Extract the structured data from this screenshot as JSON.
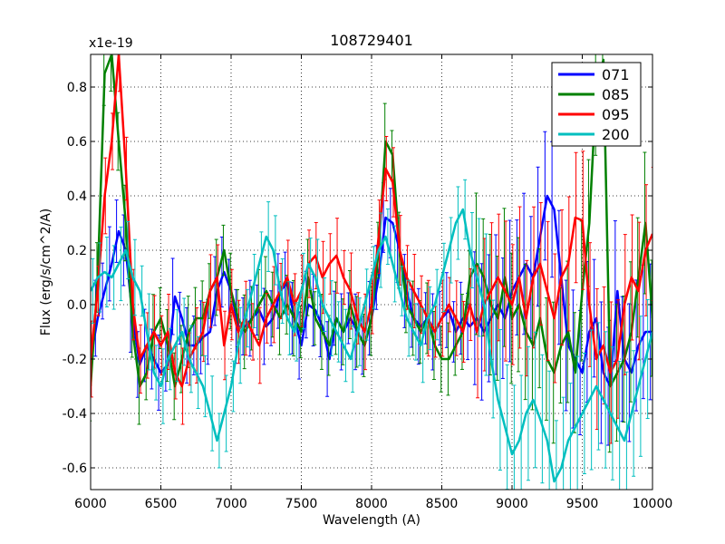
{
  "chart_data": {
    "type": "line",
    "title": "108729401",
    "xlabel": "Wavelength (A)",
    "ylabel": "Flux (erg/s/cm^2/A)",
    "y_multiplier": "x1e-19",
    "xlim": [
      6000,
      10000
    ],
    "ylim": [
      -0.68,
      0.92
    ],
    "x_ticks": [
      6000,
      6500,
      7000,
      7500,
      8000,
      8500,
      9000,
      9500,
      10000
    ],
    "y_ticks": [
      -0.6,
      -0.4,
      -0.2,
      0.0,
      0.2,
      0.4,
      0.6,
      0.8
    ],
    "y_tick_labels": [
      "-0.6",
      "-0.4",
      "-0.2",
      "0.0",
      "0.2",
      "0.4",
      "0.6",
      "0.8"
    ],
    "grid": true,
    "legend_position": "top-right",
    "x": [
      6000,
      6050,
      6100,
      6150,
      6200,
      6250,
      6300,
      6350,
      6400,
      6450,
      6500,
      6550,
      6600,
      6650,
      6700,
      6750,
      6800,
      6850,
      6900,
      6950,
      7000,
      7050,
      7100,
      7150,
      7200,
      7250,
      7300,
      7350,
      7400,
      7450,
      7500,
      7550,
      7600,
      7650,
      7700,
      7750,
      7800,
      7850,
      7900,
      7950,
      8000,
      8050,
      8100,
      8150,
      8200,
      8250,
      8300,
      8350,
      8400,
      8450,
      8500,
      8550,
      8600,
      8650,
      8700,
      8750,
      8800,
      8850,
      8900,
      8950,
      9000,
      9050,
      9100,
      9150,
      9200,
      9250,
      9300,
      9350,
      9400,
      9450,
      9500,
      9550,
      9600,
      9650,
      9700,
      9750,
      9800,
      9850,
      9900,
      9950,
      10000
    ],
    "series": [
      {
        "name": "071",
        "color": "#0000ff",
        "values": [
          -0.2,
          -0.05,
          0.05,
          0.15,
          0.27,
          0.2,
          -0.05,
          -0.22,
          -0.15,
          -0.2,
          -0.25,
          -0.22,
          0.03,
          -0.05,
          -0.15,
          -0.15,
          -0.12,
          -0.1,
          0.05,
          0.12,
          0.05,
          -0.08,
          -0.08,
          -0.05,
          -0.02,
          -0.08,
          -0.05,
          0.05,
          0.08,
          -0.05,
          -0.15,
          0.0,
          -0.02,
          -0.08,
          -0.2,
          -0.05,
          -0.1,
          -0.05,
          -0.1,
          -0.15,
          -0.05,
          0.1,
          0.32,
          0.3,
          0.2,
          0.05,
          -0.05,
          -0.08,
          -0.05,
          -0.1,
          -0.05,
          -0.02,
          -0.1,
          -0.05,
          -0.08,
          -0.05,
          -0.1,
          -0.05,
          0.0,
          -0.05,
          0.05,
          0.1,
          0.15,
          0.1,
          0.25,
          0.4,
          0.35,
          0.1,
          -0.15,
          -0.2,
          -0.25,
          -0.1,
          -0.05,
          -0.25,
          -0.3,
          0.05,
          -0.2,
          -0.25,
          -0.15,
          -0.1,
          -0.1
        ]
      },
      {
        "name": "085",
        "color": "#008000",
        "values": [
          -0.3,
          0.1,
          0.85,
          0.92,
          0.6,
          0.3,
          -0.1,
          -0.3,
          -0.25,
          -0.1,
          -0.05,
          -0.15,
          -0.3,
          -0.2,
          -0.1,
          -0.05,
          -0.05,
          0.05,
          0.1,
          0.2,
          0.05,
          -0.05,
          -0.1,
          -0.05,
          0.0,
          0.05,
          0.0,
          -0.05,
          0.0,
          -0.05,
          -0.1,
          0.1,
          -0.05,
          -0.1,
          -0.15,
          -0.05,
          -0.1,
          0.0,
          -0.1,
          -0.15,
          -0.05,
          0.2,
          0.6,
          0.55,
          0.2,
          0.0,
          -0.05,
          -0.1,
          -0.05,
          -0.15,
          -0.2,
          -0.2,
          -0.15,
          -0.1,
          0.1,
          0.15,
          0.1,
          0.0,
          -0.05,
          0.1,
          -0.05,
          0.0,
          -0.1,
          -0.15,
          -0.05,
          -0.2,
          -0.25,
          -0.15,
          -0.1,
          -0.25,
          0.05,
          0.3,
          0.8,
          0.9,
          -0.3,
          -0.25,
          -0.2,
          -0.1,
          0.1,
          0.3,
          -0.05
        ]
      },
      {
        "name": "095",
        "color": "#ff0000",
        "values": [
          -0.2,
          0.05,
          0.4,
          0.6,
          0.92,
          0.5,
          0.0,
          -0.2,
          -0.15,
          -0.1,
          -0.15,
          -0.1,
          -0.25,
          -0.3,
          -0.2,
          -0.15,
          -0.1,
          0.05,
          0.1,
          -0.15,
          0.0,
          -0.1,
          -0.05,
          -0.1,
          -0.15,
          -0.05,
          0.0,
          0.05,
          0.1,
          0.0,
          0.05,
          0.15,
          0.18,
          0.1,
          0.15,
          0.18,
          0.1,
          0.05,
          -0.05,
          -0.1,
          0.0,
          0.25,
          0.5,
          0.45,
          0.2,
          0.1,
          0.05,
          0.0,
          -0.05,
          -0.1,
          -0.05,
          0.0,
          -0.05,
          -0.1,
          0.0,
          -0.1,
          0.0,
          0.05,
          0.1,
          0.05,
          0.0,
          0.1,
          -0.05,
          0.1,
          0.15,
          0.05,
          -0.05,
          0.1,
          0.15,
          0.32,
          0.31,
          0.0,
          -0.2,
          -0.15,
          -0.25,
          -0.2,
          0.0,
          0.1,
          0.05,
          0.2,
          0.26
        ]
      },
      {
        "name": "200",
        "color": "#00bfbf",
        "values": [
          0.05,
          0.1,
          0.12,
          0.1,
          0.15,
          0.2,
          0.1,
          0.05,
          -0.1,
          -0.25,
          -0.3,
          -0.2,
          -0.15,
          -0.1,
          -0.2,
          -0.25,
          -0.3,
          -0.4,
          -0.5,
          -0.4,
          -0.3,
          -0.15,
          -0.05,
          0.05,
          0.15,
          0.25,
          0.2,
          0.05,
          -0.05,
          -0.1,
          0.05,
          0.15,
          0.1,
          0.0,
          -0.05,
          -0.1,
          -0.15,
          -0.2,
          -0.1,
          0.0,
          0.1,
          0.2,
          0.25,
          0.15,
          0.05,
          -0.05,
          -0.1,
          -0.15,
          -0.05,
          0.0,
          0.1,
          0.2,
          0.3,
          0.35,
          0.2,
          0.1,
          0.0,
          -0.2,
          -0.35,
          -0.45,
          -0.55,
          -0.5,
          -0.4,
          -0.35,
          -0.42,
          -0.5,
          -0.65,
          -0.6,
          -0.5,
          -0.45,
          -0.4,
          -0.35,
          -0.3,
          -0.35,
          -0.4,
          -0.45,
          -0.5,
          -0.4,
          -0.3,
          -0.2,
          -0.1
        ]
      }
    ]
  }
}
